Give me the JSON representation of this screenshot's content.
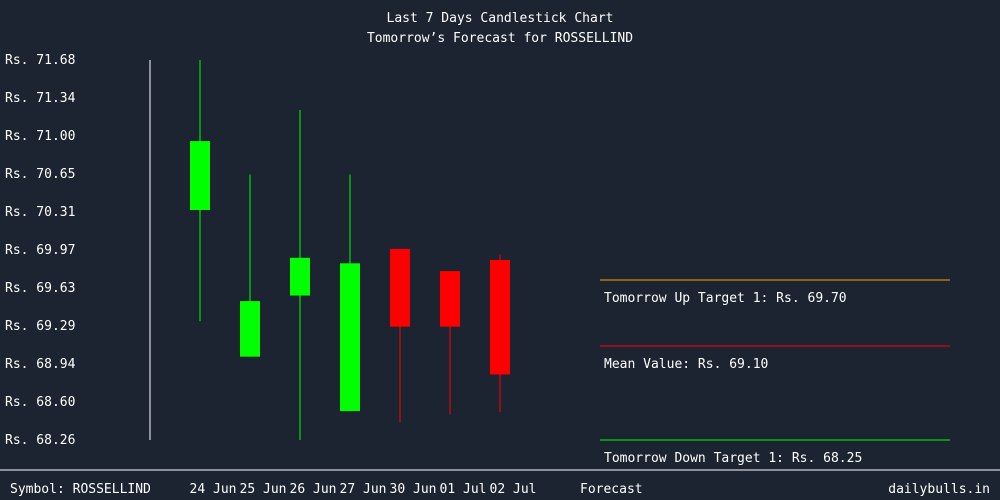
{
  "colors": {
    "background": "#1c2331",
    "text": "#ffffff",
    "bullish": "#00ff00",
    "bearish": "#ff0000",
    "up_target_line": "#ffa500",
    "mean_line": "#ff0000",
    "down_target_line": "#00ff00",
    "axis": "#ffffff"
  },
  "chart_data": {
    "type": "candlestick",
    "title": "Last 7 Days Candlestick Chart",
    "subtitle": "Tomorrow’s Forecast for ROSSELLIND",
    "y_tick_labels": [
      "Rs. 71.68",
      "Rs. 71.34",
      "Rs. 71.00",
      "Rs. 70.65",
      "Rs. 70.31",
      "Rs. 69.97",
      "Rs. 69.63",
      "Rs. 69.29",
      "Rs. 68.94",
      "Rs. 68.60",
      "Rs. 68.26"
    ],
    "ylim": [
      68.26,
      71.68
    ],
    "candles": [
      {
        "date": "24 Jun",
        "open": 70.33,
        "high": 71.68,
        "low": 69.33,
        "close": 70.95
      },
      {
        "date": "25 Jun",
        "open": 69.01,
        "high": 70.65,
        "low": null,
        "close": 69.51
      },
      {
        "date": "26 Jun",
        "open": 69.56,
        "high": 71.23,
        "low": 68.26,
        "close": 69.9
      },
      {
        "date": "27 Jun",
        "open": 68.52,
        "high": 70.65,
        "low": null,
        "close": 69.85
      },
      {
        "date": "30 Jun",
        "open": 69.98,
        "high": 69.98,
        "low": 68.42,
        "close": 69.28
      },
      {
        "date": "01 Jul",
        "open": 69.78,
        "high": 69.78,
        "low": 68.49,
        "close": 69.28
      },
      {
        "date": "02 Jul",
        "open": 69.88,
        "high": 69.93,
        "low": 68.51,
        "close": 68.85
      }
    ],
    "forecast": {
      "label": "Forecast",
      "up_target_text": "Tomorrow Up Target 1: Rs. 69.70",
      "up_target": 69.7,
      "mean_text": "Mean Value: Rs. 69.10",
      "mean": 69.1,
      "down_target_text": "Tomorrow Down Target 1: Rs. 68.25",
      "down_target": 68.25
    }
  },
  "footer": {
    "symbol": "Symbol: ROSSELLIND",
    "site": "dailybulls.in"
  }
}
